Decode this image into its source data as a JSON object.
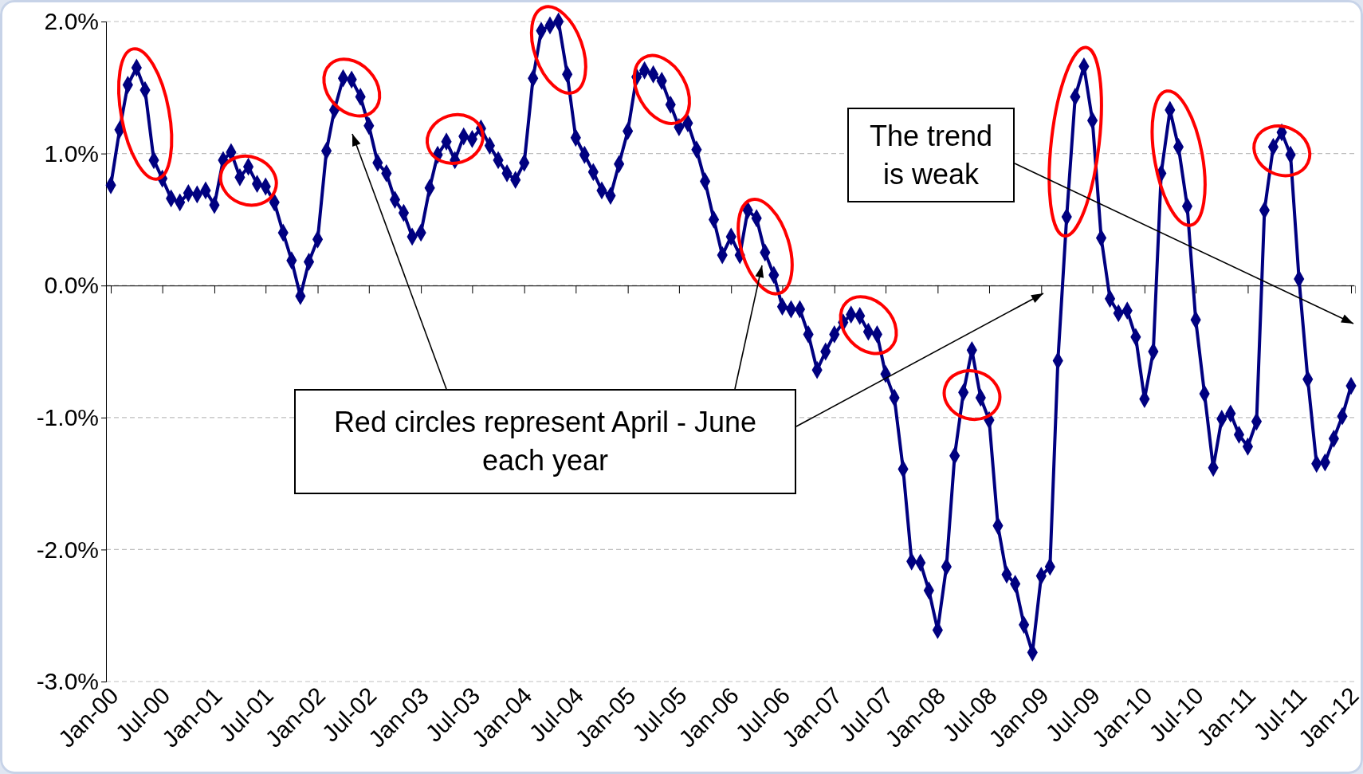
{
  "chart_data": {
    "type": "line",
    "x": [
      "2000-01",
      "2000-02",
      "2000-03",
      "2000-04",
      "2000-05",
      "2000-06",
      "2000-07",
      "2000-08",
      "2000-09",
      "2000-10",
      "2000-11",
      "2000-12",
      "2001-01",
      "2001-02",
      "2001-03",
      "2001-04",
      "2001-05",
      "2001-06",
      "2001-07",
      "2001-08",
      "2001-09",
      "2001-10",
      "2001-11",
      "2001-12",
      "2002-01",
      "2002-02",
      "2002-03",
      "2002-04",
      "2002-05",
      "2002-06",
      "2002-07",
      "2002-08",
      "2002-09",
      "2002-10",
      "2002-11",
      "2002-12",
      "2003-01",
      "2003-02",
      "2003-03",
      "2003-04",
      "2003-05",
      "2003-06",
      "2003-07",
      "2003-08",
      "2003-09",
      "2003-10",
      "2003-11",
      "2003-12",
      "2004-01",
      "2004-02",
      "2004-03",
      "2004-04",
      "2004-05",
      "2004-06",
      "2004-07",
      "2004-08",
      "2004-09",
      "2004-10",
      "2004-11",
      "2004-12",
      "2005-01",
      "2005-02",
      "2005-03",
      "2005-04",
      "2005-05",
      "2005-06",
      "2005-07",
      "2005-08",
      "2005-09",
      "2005-10",
      "2005-11",
      "2005-12",
      "2006-01",
      "2006-02",
      "2006-03",
      "2006-04",
      "2006-05",
      "2006-06",
      "2006-07",
      "2006-08",
      "2006-09",
      "2006-10",
      "2006-11",
      "2006-12",
      "2007-01",
      "2007-02",
      "2007-03",
      "2007-04",
      "2007-05",
      "2007-06",
      "2007-07",
      "2007-08",
      "2007-09",
      "2007-10",
      "2007-11",
      "2007-12",
      "2008-01",
      "2008-02",
      "2008-03",
      "2008-04",
      "2008-05",
      "2008-06",
      "2008-07",
      "2008-08",
      "2008-09",
      "2008-10",
      "2008-11",
      "2008-12",
      "2009-01",
      "2009-02",
      "2009-03",
      "2009-04",
      "2009-05",
      "2009-06",
      "2009-07",
      "2009-08",
      "2009-09",
      "2009-10",
      "2009-11",
      "2009-12",
      "2010-01",
      "2010-02",
      "2010-03",
      "2010-04",
      "2010-05",
      "2010-06",
      "2010-07",
      "2010-08",
      "2010-09",
      "2010-10",
      "2010-11",
      "2010-12",
      "2011-01",
      "2011-02",
      "2011-03",
      "2011-04",
      "2011-05",
      "2011-06",
      "2011-07",
      "2011-08",
      "2011-09",
      "2011-10",
      "2011-11",
      "2011-12",
      "2012-01"
    ],
    "series": [
      {
        "color": "#000080",
        "values": [
          0.76,
          1.18,
          1.52,
          1.65,
          1.48,
          0.95,
          0.81,
          0.66,
          0.63,
          0.7,
          0.69,
          0.72,
          0.61,
          0.95,
          1.01,
          0.82,
          0.9,
          0.77,
          0.75,
          0.63,
          0.4,
          0.19,
          -0.08,
          0.18,
          0.35,
          1.02,
          1.33,
          1.57,
          1.56,
          1.43,
          1.21,
          0.93,
          0.85,
          0.65,
          0.55,
          0.37,
          0.4,
          0.74,
          0.99,
          1.09,
          0.95,
          1.13,
          1.11,
          1.19,
          1.06,
          0.95,
          0.85,
          0.8,
          0.93,
          1.57,
          1.93,
          1.97,
          2.0,
          1.6,
          1.12,
          0.99,
          0.86,
          0.72,
          0.68,
          0.92,
          1.17,
          1.58,
          1.63,
          1.6,
          1.55,
          1.37,
          1.2,
          1.23,
          1.03,
          0.79,
          0.5,
          0.23,
          0.37,
          0.23,
          0.57,
          0.51,
          0.25,
          0.08,
          -0.16,
          -0.18,
          -0.18,
          -0.37,
          -0.64,
          -0.5,
          -0.37,
          -0.28,
          -0.22,
          -0.23,
          -0.35,
          -0.37,
          -0.67,
          -0.85,
          -1.39,
          -2.09,
          -2.1,
          -2.31,
          -2.61,
          -2.13,
          -1.29,
          -0.81,
          -0.49,
          -0.85,
          -1.02,
          -1.82,
          -2.19,
          -2.26,
          -2.57,
          -2.78,
          -2.2,
          -2.13,
          -0.57,
          0.52,
          1.43,
          1.66,
          1.25,
          0.36,
          -0.1,
          -0.21,
          -0.19,
          -0.39,
          -0.86,
          -0.5,
          0.85,
          1.33,
          1.05,
          0.6,
          -0.26,
          -0.82,
          -1.38,
          -1.01,
          -0.97,
          -1.13,
          -1.22,
          -1.03,
          0.57,
          1.05,
          1.16,
          0.99,
          0.05,
          -0.71,
          -1.35,
          -1.34,
          -1.16,
          -0.99,
          -0.76
        ]
      }
    ],
    "xlim": [
      "1999-12-15",
      "2012-01-15"
    ],
    "xticks": [
      {
        "value": "2000-01",
        "label": "Jan-00"
      },
      {
        "value": "2000-07",
        "label": "Jul-00"
      },
      {
        "value": "2001-01",
        "label": "Jan-01"
      },
      {
        "value": "2001-07",
        "label": "Jul-01"
      },
      {
        "value": "2002-01",
        "label": "Jan-02"
      },
      {
        "value": "2002-07",
        "label": "Jul-02"
      },
      {
        "value": "2003-01",
        "label": "Jan-03"
      },
      {
        "value": "2003-07",
        "label": "Jul-03"
      },
      {
        "value": "2004-01",
        "label": "Jan-04"
      },
      {
        "value": "2004-07",
        "label": "Jul-04"
      },
      {
        "value": "2005-01",
        "label": "Jan-05"
      },
      {
        "value": "2005-07",
        "label": "Jul-05"
      },
      {
        "value": "2006-01",
        "label": "Jan-06"
      },
      {
        "value": "2006-07",
        "label": "Jul-06"
      },
      {
        "value": "2007-01",
        "label": "Jan-07"
      },
      {
        "value": "2007-07",
        "label": "Jul-07"
      },
      {
        "value": "2008-01",
        "label": "Jan-08"
      },
      {
        "value": "2008-07",
        "label": "Jul-08"
      },
      {
        "value": "2009-01",
        "label": "Jan-09"
      },
      {
        "value": "2009-07",
        "label": "Jul-09"
      },
      {
        "value": "2010-01",
        "label": "Jan-10"
      },
      {
        "value": "2010-07",
        "label": "Jul-10"
      },
      {
        "value": "2011-01",
        "label": "Jan-11"
      },
      {
        "value": "2011-07",
        "label": "Jul-11"
      },
      {
        "value": "2012-01",
        "label": "Jan-12"
      }
    ],
    "ylim": [
      -3,
      2
    ],
    "yticks": [
      {
        "value": -3,
        "label": "-3.0%"
      },
      {
        "value": -2,
        "label": "-2.0%"
      },
      {
        "value": -1,
        "label": "-1.0%"
      },
      {
        "value": 0,
        "label": "0.0%"
      },
      {
        "value": 1,
        "label": "1.0%"
      },
      {
        "value": 2,
        "label": "2.0%"
      }
    ],
    "grid": "y",
    "marker": "diamond",
    "line_style": "solid",
    "annotations": [
      "Red circles represent April - June each year",
      "The trend is weak"
    ]
  }
}
